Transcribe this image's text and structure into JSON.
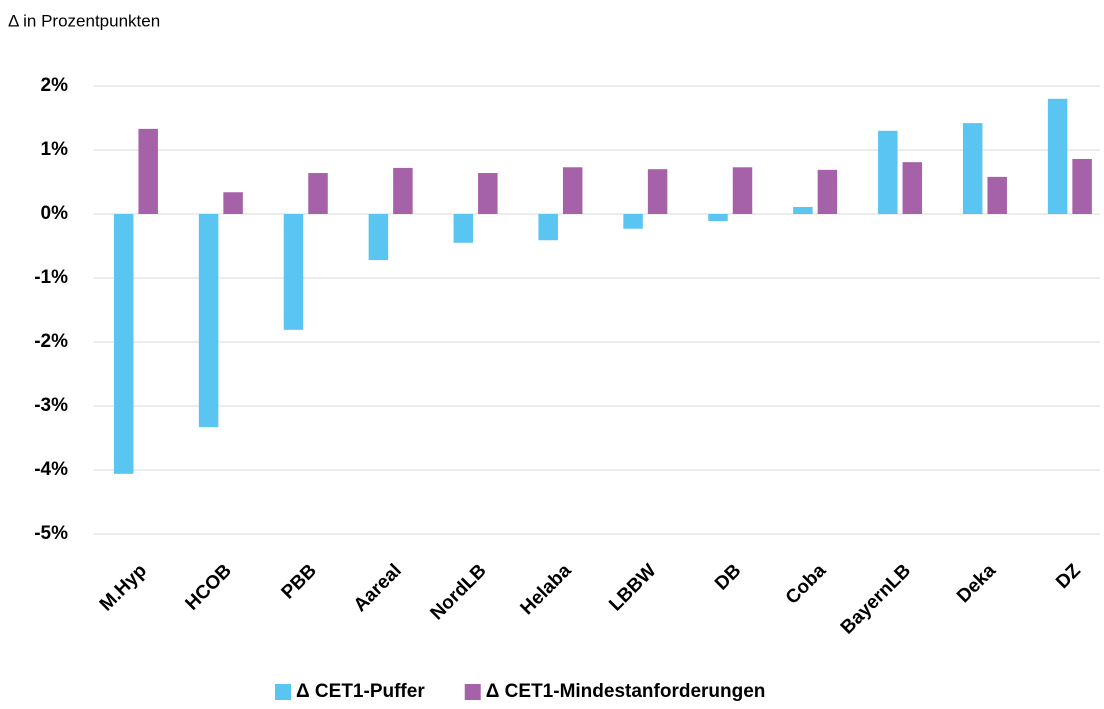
{
  "chart_data": {
    "type": "bar",
    "subtitle": "Δ in Prozentpunkten",
    "categories": [
      "M.Hyp",
      "HCOB",
      "PBB",
      "Aareal",
      "NordLB",
      "Helaba",
      "LBBW",
      "DB",
      "Coba",
      "BayernLB",
      "Deka",
      "DZ"
    ],
    "series": [
      {
        "name": "Δ CET1-Puffer",
        "color": "#5bc5f2",
        "values": [
          -4.06,
          -3.33,
          -1.81,
          -0.72,
          -0.45,
          -0.41,
          -0.23,
          -0.11,
          0.11,
          1.3,
          1.42,
          1.8
        ]
      },
      {
        "name": "Δ CET1-Mindestanforderungen",
        "color": "#a662a8",
        "values": [
          1.33,
          0.34,
          0.64,
          0.72,
          0.64,
          0.73,
          0.7,
          0.73,
          0.69,
          0.81,
          0.58,
          0.86
        ]
      }
    ],
    "ylim": [
      -5,
      2
    ],
    "yticks": [
      {
        "value": -5,
        "label": "-5%"
      },
      {
        "value": -4,
        "label": "-4%"
      },
      {
        "value": -3,
        "label": "-3%"
      },
      {
        "value": -2,
        "label": "-2%"
      },
      {
        "value": -1,
        "label": "-1%"
      },
      {
        "value": 0,
        "label": "0%"
      },
      {
        "value": 1,
        "label": "1%"
      },
      {
        "value": 2,
        "label": "2%"
      }
    ],
    "grid": true,
    "legend": "bottom"
  }
}
